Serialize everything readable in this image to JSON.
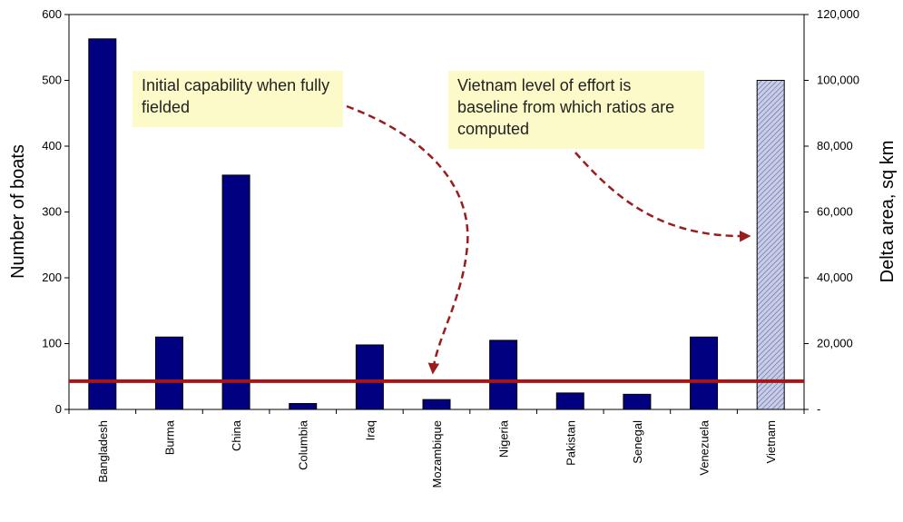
{
  "chart_data": {
    "type": "bar",
    "categories": [
      "Bangladesh",
      "Burma",
      "China",
      "Columbia",
      "Iraq",
      "Mozambique",
      "Nigeria",
      "Pakistan",
      "Senegal",
      "Venezuela",
      "Vietnam"
    ],
    "values": [
      563,
      110,
      356,
      9,
      98,
      15,
      105,
      25,
      23,
      110,
      500
    ],
    "ylabel": "Number of boats",
    "y2label": "Delta area, sq km",
    "ylim": [
      0,
      600
    ],
    "y2lim": [
      0,
      120000
    ],
    "yticks": [
      "0",
      "100",
      "200",
      "300",
      "400",
      "500",
      "600"
    ],
    "y2ticks": [
      "-",
      "20,000",
      "40,000",
      "60,000",
      "80,000",
      "100,000",
      "120,000"
    ],
    "reference_line": 43,
    "highlight_category": "Vietnam",
    "grid": false,
    "annotations": {
      "left": "Initial capability when fully fielded",
      "right": "Vietnam level of effort is baseline from which ratios are computed"
    },
    "colors": {
      "bar": "#000080",
      "highlight_bar": "#aab2d8",
      "reference_line": "#a01818",
      "arrow": "#9b1c1c",
      "note_background": "#fbfac8"
    }
  }
}
